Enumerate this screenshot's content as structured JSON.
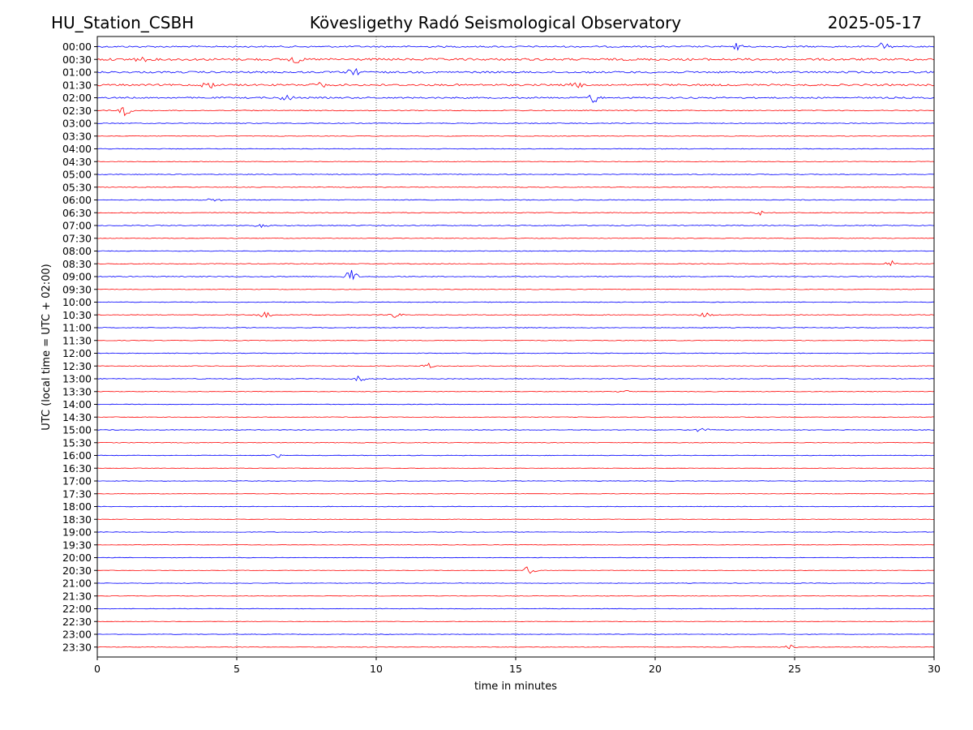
{
  "header": {
    "station": "HU_Station_CSBH",
    "observatory": "Kövesligethy Radó Seismological Observatory",
    "date": "2025-05-17"
  },
  "chart_data": {
    "type": "line",
    "title": "Kövesligethy Radó Seismological Observatory",
    "xlabel": "time in minutes",
    "ylabel": "UTC (local time = UTC + 02:00)",
    "xlim": [
      0,
      30
    ],
    "x_ticks": [
      "0",
      "5",
      "10",
      "15",
      "20",
      "25",
      "30"
    ],
    "x_tick_values": [
      0,
      5,
      10,
      15,
      20,
      25,
      30
    ],
    "grid": "vertical dotted at x ticks",
    "trace_colors": [
      "#0000ff",
      "#ff0000"
    ],
    "rows": [
      "00:00",
      "00:30",
      "01:00",
      "01:30",
      "02:00",
      "02:30",
      "03:00",
      "03:30",
      "04:00",
      "04:30",
      "05:00",
      "05:30",
      "06:00",
      "06:30",
      "07:00",
      "07:30",
      "08:00",
      "08:30",
      "09:00",
      "09:30",
      "10:00",
      "10:30",
      "11:00",
      "11:30",
      "12:00",
      "12:30",
      "13:00",
      "13:30",
      "14:00",
      "14:30",
      "15:00",
      "15:30",
      "16:00",
      "16:30",
      "17:00",
      "17:30",
      "18:00",
      "18:30",
      "19:00",
      "19:30",
      "20:00",
      "20:30",
      "21:00",
      "21:30",
      "22:00",
      "22:30",
      "23:00",
      "23:30"
    ],
    "row_noise_level": [
      0.9,
      1.3,
      1.1,
      1.1,
      0.9,
      0.55,
      0.45,
      0.4,
      0.4,
      0.4,
      0.45,
      0.45,
      0.5,
      0.5,
      0.5,
      0.4,
      0.45,
      0.45,
      0.5,
      0.4,
      0.4,
      0.45,
      0.4,
      0.4,
      0.4,
      0.4,
      0.4,
      0.35,
      0.35,
      0.35,
      0.35,
      0.35,
      0.35,
      0.3,
      0.3,
      0.3,
      0.3,
      0.3,
      0.3,
      0.3,
      0.3,
      0.3,
      0.3,
      0.3,
      0.3,
      0.3,
      0.3,
      0.35
    ],
    "events": [
      {
        "row": "00:00",
        "minute": 23.0,
        "amplitude": 6
      },
      {
        "row": "00:00",
        "minute": 28.2,
        "amplitude": 7
      },
      {
        "row": "00:30",
        "minute": 1.5,
        "amplitude": 5
      },
      {
        "row": "00:30",
        "minute": 7.1,
        "amplitude": 6
      },
      {
        "row": "01:00",
        "minute": 9.2,
        "amplitude": 5
      },
      {
        "row": "01:30",
        "minute": 4.0,
        "amplitude": 6
      },
      {
        "row": "01:30",
        "minute": 7.9,
        "amplitude": 6
      },
      {
        "row": "01:30",
        "minute": 17.2,
        "amplitude": 5
      },
      {
        "row": "02:00",
        "minute": 6.8,
        "amplitude": 6
      },
      {
        "row": "02:00",
        "minute": 17.8,
        "amplitude": 7
      },
      {
        "row": "02:30",
        "minute": 1.0,
        "amplitude": 7
      },
      {
        "row": "06:00",
        "minute": 4.2,
        "amplitude": 3
      },
      {
        "row": "06:30",
        "minute": 23.7,
        "amplitude": 4
      },
      {
        "row": "07:00",
        "minute": 5.9,
        "amplitude": 4
      },
      {
        "row": "08:30",
        "minute": 28.5,
        "amplitude": 4
      },
      {
        "row": "09:00",
        "minute": 9.1,
        "amplitude": 10
      },
      {
        "row": "10:30",
        "minute": 6.0,
        "amplitude": 5
      },
      {
        "row": "10:30",
        "minute": 10.7,
        "amplitude": 4
      },
      {
        "row": "10:30",
        "minute": 21.8,
        "amplitude": 4
      },
      {
        "row": "12:30",
        "minute": 11.8,
        "amplitude": 4
      },
      {
        "row": "13:00",
        "minute": 9.4,
        "amplitude": 4
      },
      {
        "row": "13:30",
        "minute": 18.8,
        "amplitude": 3
      },
      {
        "row": "15:00",
        "minute": 21.7,
        "amplitude": 4
      },
      {
        "row": "16:00",
        "minute": 6.5,
        "amplitude": 3
      },
      {
        "row": "20:30",
        "minute": 15.5,
        "amplitude": 6
      },
      {
        "row": "23:30",
        "minute": 24.8,
        "amplitude": 3
      }
    ]
  }
}
